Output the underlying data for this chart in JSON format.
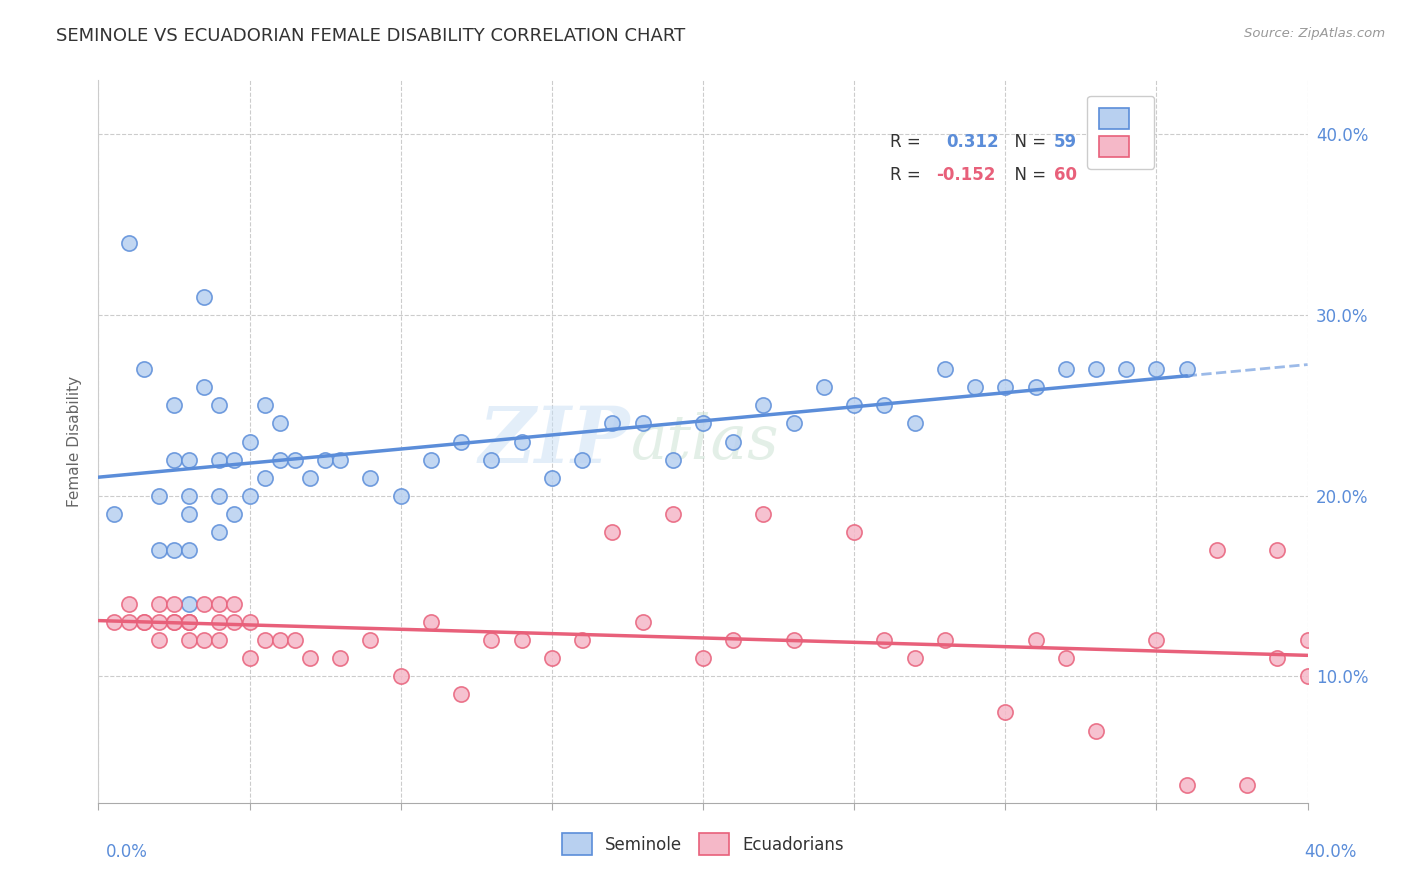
{
  "title": "SEMINOLE VS ECUADORIAN FEMALE DISABILITY CORRELATION CHART",
  "source_text": "Source: ZipAtlas.com",
  "ylabel": "Female Disability",
  "xmin": 0.0,
  "xmax": 0.4,
  "ymin": 0.03,
  "ymax": 0.43,
  "seminole_color": "#5b8dd9",
  "seminole_face": "#b8d0f0",
  "ecuadorian_color": "#e8607a",
  "ecuadorian_face": "#f5b8c8",
  "watermark_zip": "ZIP",
  "watermark_atlas": "atlas",
  "background_color": "#ffffff",
  "grid_color": "#cccccc",
  "seminole_x": [
    0.005,
    0.01,
    0.015,
    0.02,
    0.02,
    0.025,
    0.025,
    0.025,
    0.03,
    0.03,
    0.03,
    0.03,
    0.03,
    0.035,
    0.035,
    0.04,
    0.04,
    0.04,
    0.04,
    0.045,
    0.045,
    0.05,
    0.05,
    0.055,
    0.055,
    0.06,
    0.06,
    0.065,
    0.07,
    0.075,
    0.08,
    0.09,
    0.1,
    0.11,
    0.12,
    0.13,
    0.14,
    0.15,
    0.16,
    0.17,
    0.18,
    0.19,
    0.2,
    0.21,
    0.22,
    0.23,
    0.24,
    0.25,
    0.26,
    0.27,
    0.28,
    0.29,
    0.3,
    0.31,
    0.32,
    0.33,
    0.34,
    0.35,
    0.36
  ],
  "seminole_y": [
    0.19,
    0.34,
    0.27,
    0.17,
    0.2,
    0.17,
    0.22,
    0.25,
    0.17,
    0.19,
    0.2,
    0.22,
    0.14,
    0.26,
    0.31,
    0.18,
    0.2,
    0.22,
    0.25,
    0.19,
    0.22,
    0.2,
    0.23,
    0.21,
    0.25,
    0.22,
    0.24,
    0.22,
    0.21,
    0.22,
    0.22,
    0.21,
    0.2,
    0.22,
    0.23,
    0.22,
    0.23,
    0.21,
    0.22,
    0.24,
    0.24,
    0.22,
    0.24,
    0.23,
    0.25,
    0.24,
    0.26,
    0.25,
    0.25,
    0.24,
    0.27,
    0.26,
    0.26,
    0.26,
    0.27,
    0.27,
    0.27,
    0.27,
    0.27
  ],
  "ecuadorian_x": [
    0.005,
    0.01,
    0.01,
    0.015,
    0.015,
    0.02,
    0.02,
    0.02,
    0.025,
    0.025,
    0.025,
    0.03,
    0.03,
    0.03,
    0.03,
    0.035,
    0.035,
    0.04,
    0.04,
    0.04,
    0.045,
    0.045,
    0.05,
    0.05,
    0.055,
    0.06,
    0.065,
    0.07,
    0.08,
    0.09,
    0.1,
    0.11,
    0.12,
    0.13,
    0.14,
    0.15,
    0.16,
    0.17,
    0.18,
    0.19,
    0.2,
    0.21,
    0.22,
    0.23,
    0.25,
    0.26,
    0.27,
    0.28,
    0.3,
    0.31,
    0.32,
    0.33,
    0.35,
    0.36,
    0.37,
    0.38,
    0.39,
    0.39,
    0.4,
    0.4
  ],
  "ecuadorian_y": [
    0.13,
    0.13,
    0.14,
    0.13,
    0.13,
    0.12,
    0.13,
    0.14,
    0.13,
    0.13,
    0.14,
    0.13,
    0.13,
    0.12,
    0.13,
    0.14,
    0.12,
    0.14,
    0.12,
    0.13,
    0.13,
    0.14,
    0.11,
    0.13,
    0.12,
    0.12,
    0.12,
    0.11,
    0.11,
    0.12,
    0.1,
    0.13,
    0.09,
    0.12,
    0.12,
    0.11,
    0.12,
    0.18,
    0.13,
    0.19,
    0.11,
    0.12,
    0.19,
    0.12,
    0.18,
    0.12,
    0.11,
    0.12,
    0.08,
    0.12,
    0.11,
    0.07,
    0.12,
    0.04,
    0.17,
    0.04,
    0.17,
    0.11,
    0.1,
    0.12
  ]
}
